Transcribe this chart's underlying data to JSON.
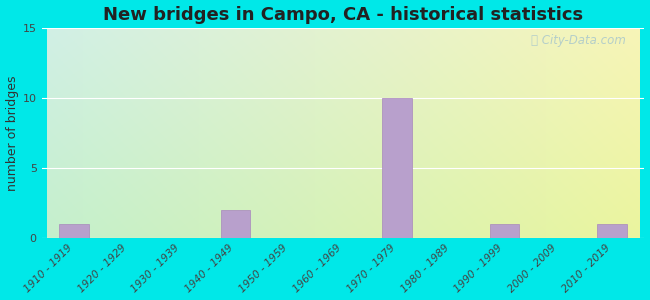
{
  "title": "New bridges in Campo, CA - historical statistics",
  "ylabel": "number of bridges",
  "categories": [
    "1910 - 1919",
    "1920 - 1929",
    "1930 - 1939",
    "1940 - 1949",
    "1950 - 1959",
    "1960 - 1969",
    "1970 - 1979",
    "1980 - 1989",
    "1990 - 1999",
    "2000 - 2009",
    "2010 - 2019"
  ],
  "values": [
    1,
    0,
    0,
    2,
    0,
    0,
    10,
    0,
    1,
    0,
    1
  ],
  "bar_color": "#b8a0cc",
  "bar_edge_color": "#a888bb",
  "ylim": [
    0,
    15
  ],
  "yticks": [
    0,
    5,
    10,
    15
  ],
  "background_outer": "#00e8e8",
  "grid_color": "#e0e8e0",
  "title_fontsize": 13,
  "ylabel_fontsize": 9,
  "tick_fontsize": 7.5,
  "watermark": "City-Data.com"
}
